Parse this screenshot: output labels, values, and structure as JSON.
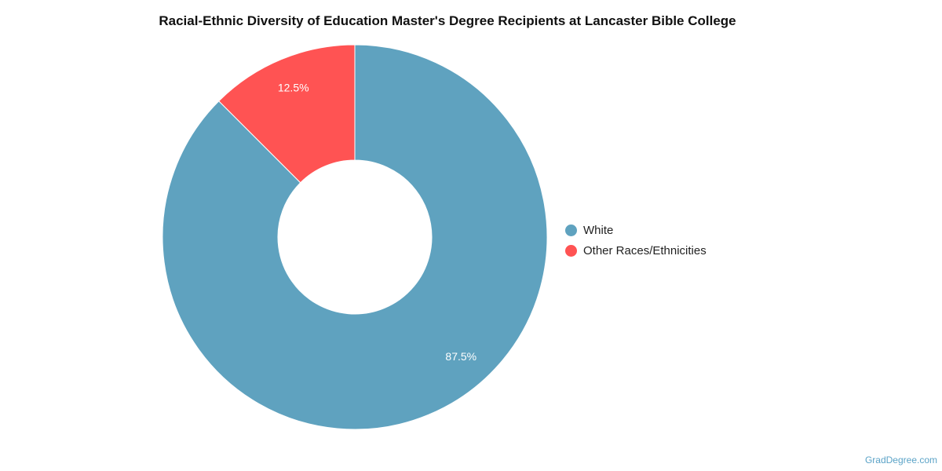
{
  "chart_data": {
    "type": "pie",
    "title": "Racial-Ethnic Diversity of Education Master's Degree Recipients at Lancaster Bible College",
    "donut": true,
    "legend_position": "right",
    "categories": [
      "White",
      "Other Races/Ethnicities"
    ],
    "values": [
      87.5,
      12.5
    ],
    "data_labels": [
      "87.5%",
      "12.5%"
    ],
    "colors": [
      "#5fa2bf",
      "#ff5353"
    ]
  },
  "credit": "GradDegree.com"
}
